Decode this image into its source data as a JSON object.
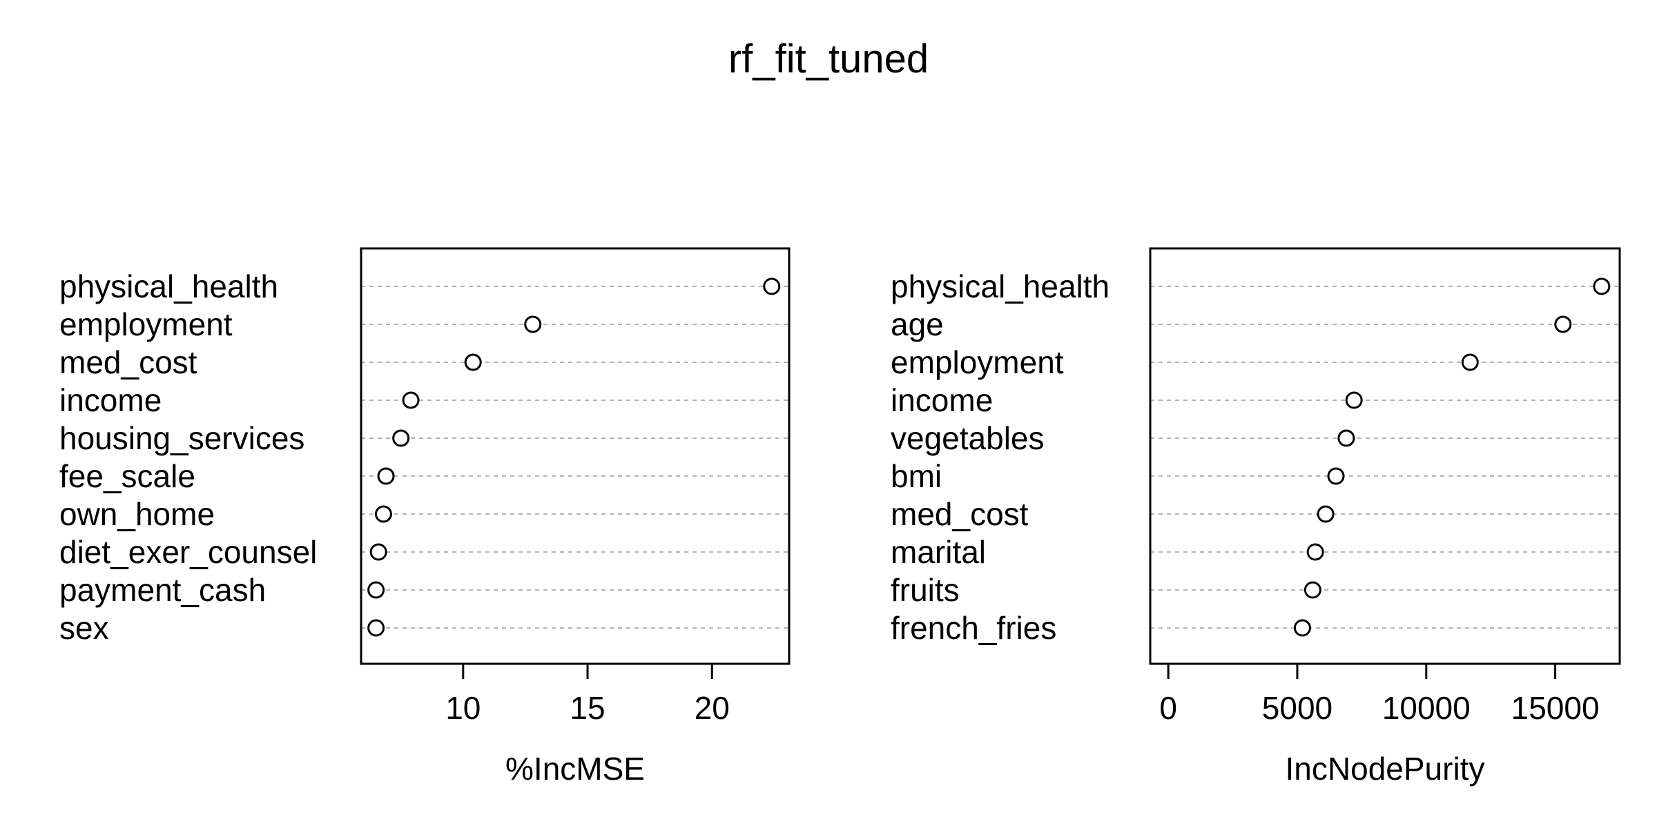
{
  "title": "rf_fit_tuned",
  "chart_data": [
    {
      "type": "scatter",
      "xlabel": "%IncMSE",
      "ylabel": "",
      "categories": [
        "physical_health",
        "employment",
        "med_cost",
        "income",
        "housing_services",
        "fee_scale",
        "own_home",
        "diet_exer_counsel",
        "payment_cash",
        "sex"
      ],
      "values": [
        22.4,
        12.8,
        10.4,
        7.9,
        7.5,
        6.9,
        6.8,
        6.6,
        6.5,
        6.5
      ],
      "xlim": [
        5.9,
        23.1
      ],
      "xticks": [
        10,
        15,
        20
      ],
      "grid": "dashed horizontal guide per variable",
      "marker": "open circle"
    },
    {
      "type": "scatter",
      "xlabel": "IncNodePurity",
      "ylabel": "",
      "categories": [
        "physical_health",
        "age",
        "employment",
        "income",
        "vegetables",
        "bmi",
        "med_cost",
        "marital",
        "fruits",
        "french_fries"
      ],
      "values": [
        16800,
        15300,
        11700,
        7200,
        6900,
        6500,
        6100,
        5700,
        5600,
        5200
      ],
      "xlim": [
        -700,
        17500
      ],
      "xticks": [
        0,
        5000,
        10000,
        15000
      ],
      "grid": "dashed horizontal guide per variable",
      "marker": "open circle"
    }
  ]
}
